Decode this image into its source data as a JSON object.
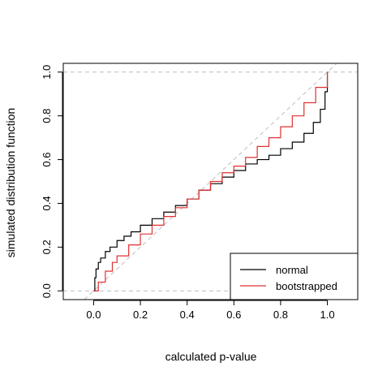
{
  "chart_data": {
    "type": "line",
    "title": "",
    "xlabel": "calculated p-value",
    "ylabel": "simulated distribution function",
    "xlim": [
      -0.13,
      1.13
    ],
    "ylim": [
      -0.04,
      1.04
    ],
    "xticks": [
      "0.0",
      "0.2",
      "0.4",
      "0.6",
      "0.8",
      "1.0"
    ],
    "yticks": [
      "0.0",
      "0.2",
      "0.4",
      "0.6",
      "0.8",
      "1.0"
    ],
    "grid": false,
    "legend_position": "bottom-right",
    "reference_lines": {
      "horizontal": [
        0,
        1
      ],
      "diagonal": "y = x",
      "color": "#bdbdbd",
      "style": "dashed"
    },
    "series": [
      {
        "name": "normal",
        "color": "#000000",
        "x": [
          0,
          0.005,
          0.01,
          0.02,
          0.03,
          0.05,
          0.07,
          0.1,
          0.13,
          0.16,
          0.2,
          0.25,
          0.3,
          0.35,
          0.4,
          0.45,
          0.5,
          0.55,
          0.6,
          0.65,
          0.7,
          0.75,
          0.8,
          0.85,
          0.9,
          0.94,
          0.97,
          0.99,
          1.0
        ],
        "values": [
          0,
          0.06,
          0.1,
          0.13,
          0.15,
          0.18,
          0.2,
          0.23,
          0.25,
          0.27,
          0.3,
          0.33,
          0.36,
          0.39,
          0.42,
          0.46,
          0.49,
          0.52,
          0.55,
          0.58,
          0.6,
          0.62,
          0.65,
          0.68,
          0.72,
          0.77,
          0.83,
          0.91,
          1.0
        ]
      },
      {
        "name": "bootstrapped",
        "color": "#e03030",
        "x": [
          0,
          0.02,
          0.05,
          0.08,
          0.1,
          0.15,
          0.2,
          0.25,
          0.3,
          0.35,
          0.4,
          0.45,
          0.5,
          0.55,
          0.6,
          0.65,
          0.7,
          0.75,
          0.8,
          0.85,
          0.9,
          0.95,
          1.0
        ],
        "values": [
          0,
          0.04,
          0.09,
          0.13,
          0.16,
          0.21,
          0.26,
          0.3,
          0.34,
          0.38,
          0.42,
          0.46,
          0.5,
          0.54,
          0.57,
          0.61,
          0.66,
          0.7,
          0.75,
          0.8,
          0.86,
          0.93,
          1.0
        ]
      }
    ]
  }
}
